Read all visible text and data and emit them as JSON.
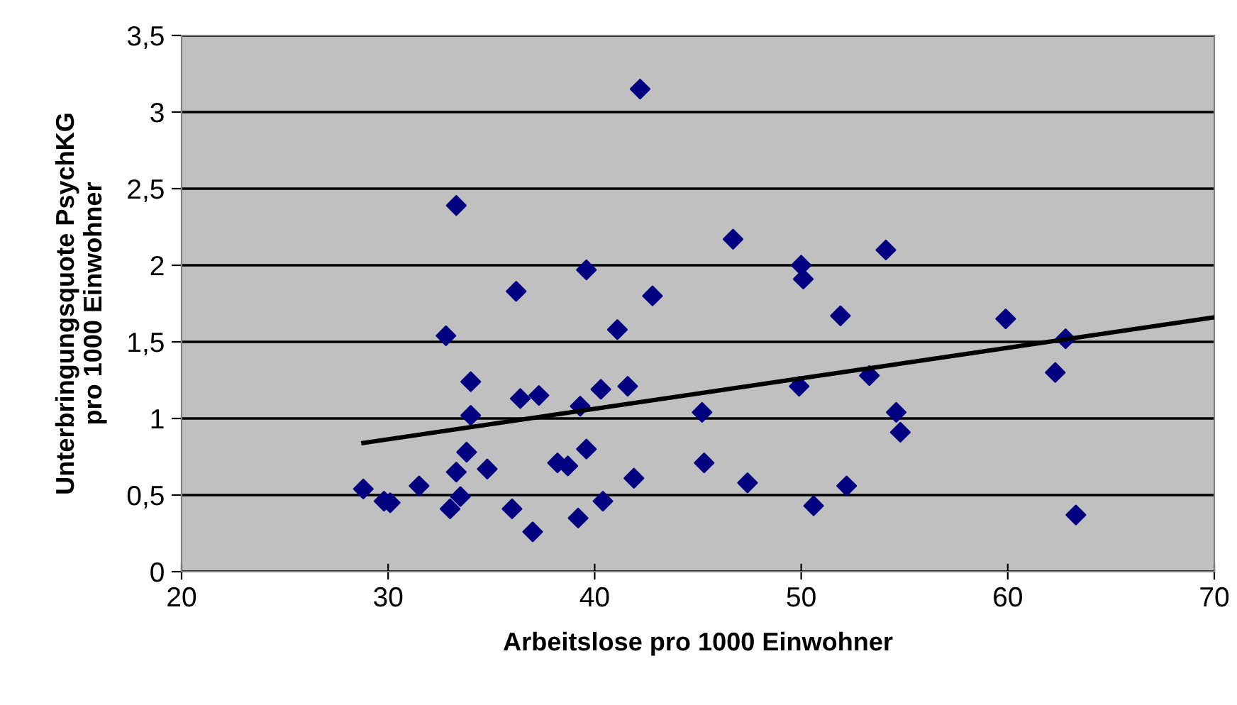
{
  "chart_data": {
    "type": "scatter",
    "xlabel": "Arbeitslose pro 1000 Einwohner",
    "ylabel": "Unterbringungsquote PsychKG\npro 1000 Einwohner",
    "xlim": [
      20,
      70
    ],
    "xticks": [
      20,
      30,
      40,
      50,
      60,
      70
    ],
    "ylim": [
      0,
      3.5
    ],
    "yticks": [
      0,
      {
        "value": 0.5,
        "label": "0,5"
      },
      1,
      {
        "value": 1.5,
        "label": "1,5"
      },
      2,
      {
        "value": 2.5,
        "label": "2,5"
      },
      3,
      {
        "value": 3.5,
        "label": "3,5"
      }
    ],
    "grid": "y",
    "legend": false,
    "series": [
      {
        "marker": "diamond",
        "color": "#000080",
        "x": [
          28.8,
          29.8,
          30.1,
          31.5,
          32.8,
          33.0,
          33.3,
          33.3,
          33.5,
          33.8,
          34.0,
          34.0,
          34.8,
          36.0,
          36.2,
          36.4,
          37.0,
          37.3,
          38.2,
          38.7,
          39.2,
          39.3,
          39.6,
          39.6,
          40.3,
          40.4,
          41.1,
          41.6,
          41.9,
          42.2,
          42.8,
          45.2,
          45.3,
          46.7,
          47.4,
          49.9,
          50.0,
          50.1,
          50.6,
          51.9,
          52.2,
          53.3,
          54.1,
          54.6,
          54.8,
          59.9,
          62.3,
          62.8,
          63.3
        ],
        "values": [
          0.54,
          0.46,
          0.45,
          0.56,
          1.54,
          0.41,
          2.39,
          0.65,
          0.49,
          0.78,
          1.24,
          1.02,
          0.67,
          0.41,
          1.83,
          1.13,
          0.26,
          1.15,
          0.71,
          0.69,
          0.35,
          1.08,
          1.97,
          0.8,
          1.19,
          0.46,
          1.58,
          1.21,
          0.61,
          3.15,
          1.8,
          1.04,
          0.71,
          2.17,
          0.58,
          1.21,
          2.0,
          1.91,
          0.43,
          1.67,
          0.56,
          1.28,
          2.1,
          1.04,
          0.91,
          1.65,
          1.3,
          1.52,
          0.37
        ]
      },
      {
        "type": "line",
        "marker": "none",
        "color": "#000000",
        "x": [
          28.8,
          70
        ],
        "values": [
          0.84,
          1.66
        ]
      }
    ]
  }
}
